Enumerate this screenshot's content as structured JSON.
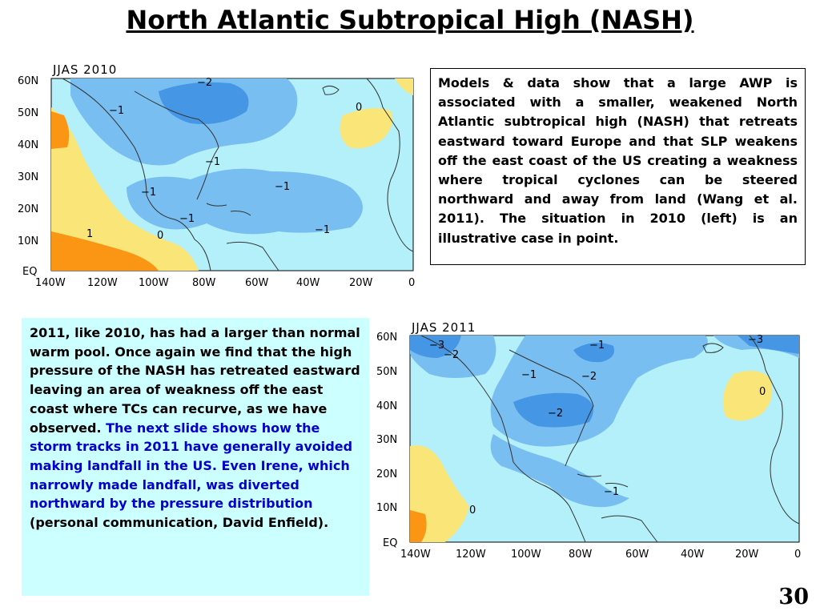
{
  "slide": {
    "title": "North Atlantic Subtropical High (NASH)",
    "number": "30"
  },
  "map_2010": {
    "title": "JJAS 2010",
    "lat_labels": [
      "60N",
      "50N",
      "40N",
      "30N",
      "20N",
      "10N",
      "EQ"
    ],
    "lon_labels": [
      "140W",
      "120W",
      "100W",
      "80W",
      "60W",
      "40W",
      "20W",
      "0"
    ],
    "contour_labels": [
      "−2",
      "−1",
      "0",
      "−1",
      "−1",
      "−1",
      "−1",
      "−1",
      "1",
      "0"
    ]
  },
  "map_2011": {
    "title": "JJAS 2011",
    "lat_labels": [
      "60N",
      "50N",
      "40N",
      "30N",
      "20N",
      "10N",
      "EQ"
    ],
    "lon_labels": [
      "140W",
      "120W",
      "100W",
      "80W",
      "60W",
      "40W",
      "20W",
      "0"
    ],
    "contour_labels": [
      "−3",
      "−2",
      "−1",
      "−3",
      "−1",
      "−2",
      "0",
      "−2",
      "−1",
      "0"
    ]
  },
  "box1": {
    "text": "Models & data show that a large AWP is associated with a smaller, weakened North Atlantic subtropical high (NASH) that retreats eastward toward Europe and that SLP weakens off the east coast of the US creating a weakness where tropical cyclones can be steered northward and away from land (Wang et al. 2011). The situation in 2010 (left) is an illustrative case in point."
  },
  "box2": {
    "text_black": "2011, like 2010, has had a larger than normal warm pool.  Once again we find that the high pressure of the NASH has retreated eastward leaving an area of weakness off the east coast where TCs can recurve, as we have observed. ",
    "text_blue": "The next slide shows how the storm tracks in 2011 have generally avoided making landfall in the US. Even Irene, which narrowly made landfall, was diverted northward by the pressure distribution",
    "text_tail": " (personal communication, David Enfield)."
  },
  "colors": {
    "ocean_base": "#b4f0fa",
    "neg1": "#78bef0",
    "neg2": "#4696e6",
    "neg3": "#2878dc",
    "pos0": "#fae678",
    "pos1": "#fa9614"
  }
}
